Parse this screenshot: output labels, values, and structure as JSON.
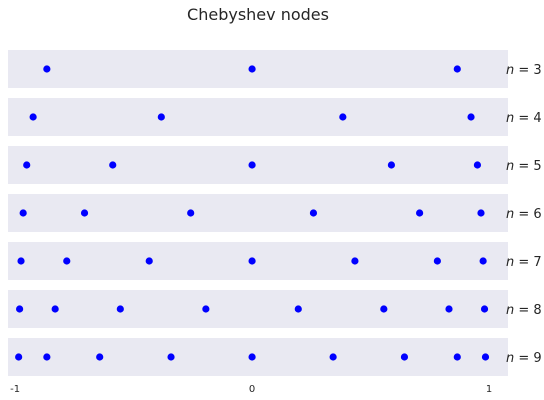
{
  "chart_data": {
    "type": "scatter",
    "title": "Chebyshev nodes",
    "xlabel": "",
    "ylabel": "",
    "xlim": [
      -1.03,
      1.08
    ],
    "x_ticks": [
      -1,
      0,
      1
    ],
    "x_tick_labels": [
      "-1",
      "0",
      "1"
    ],
    "grid": false,
    "point_color": "#0000ff",
    "panel_color": "#e9e9f2",
    "rows": [
      {
        "label_var": "n",
        "label_eq": " = 3",
        "n": 3,
        "x": [
          -0.866,
          0.0,
          0.866
        ]
      },
      {
        "label_var": "n",
        "label_eq": " = 4",
        "n": 4,
        "x": [
          -0.924,
          -0.383,
          0.383,
          0.924
        ]
      },
      {
        "label_var": "n",
        "label_eq": " = 5",
        "n": 5,
        "x": [
          -0.951,
          -0.588,
          0.0,
          0.588,
          0.951
        ]
      },
      {
        "label_var": "n",
        "label_eq": " = 6",
        "n": 6,
        "x": [
          -0.966,
          -0.707,
          -0.259,
          0.259,
          0.707,
          0.966
        ]
      },
      {
        "label_var": "n",
        "label_eq": " = 7",
        "n": 7,
        "x": [
          -0.975,
          -0.782,
          -0.434,
          0.0,
          0.434,
          0.782,
          0.975
        ]
      },
      {
        "label_var": "n",
        "label_eq": " = 8",
        "n": 8,
        "x": [
          -0.981,
          -0.831,
          -0.556,
          -0.195,
          0.195,
          0.556,
          0.831,
          0.981
        ]
      },
      {
        "label_var": "n",
        "label_eq": " = 9",
        "n": 9,
        "x": [
          -0.985,
          -0.866,
          -0.643,
          -0.342,
          0.0,
          0.342,
          0.643,
          0.866,
          0.985
        ]
      }
    ]
  }
}
